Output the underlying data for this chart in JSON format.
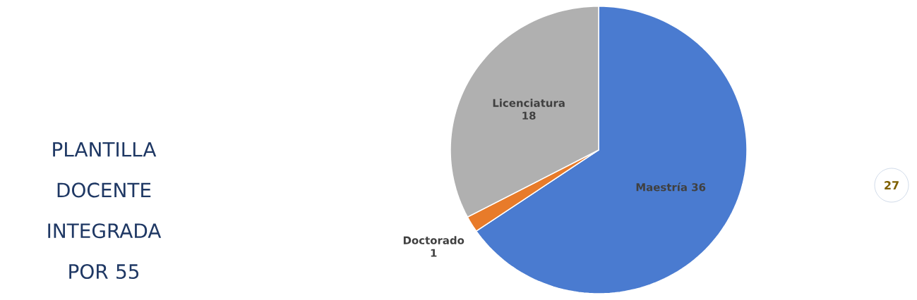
{
  "chart_data": {
    "type": "pie",
    "title": "PLANTILLA DOCENTE INTEGRADA POR 55",
    "categories": [
      "Maestría",
      "Doctorado",
      "Licenciatura"
    ],
    "values": [
      36,
      1,
      18
    ],
    "colors": [
      "#4a7bd0",
      "#e87b2a",
      "#b0b0b0"
    ],
    "data_labels": true,
    "annotations": [
      "27"
    ]
  }
}
